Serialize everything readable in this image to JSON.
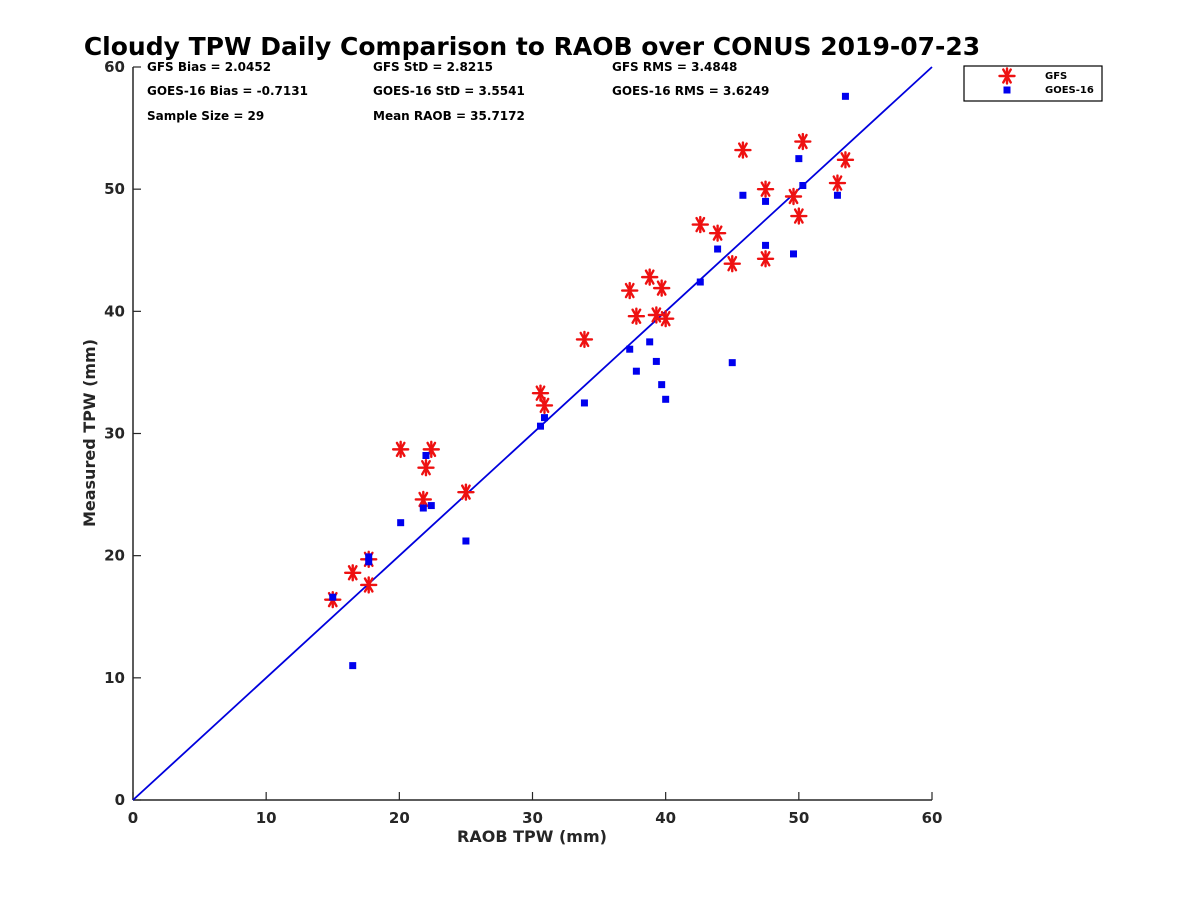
{
  "chart_data": {
    "type": "scatter",
    "title": "Cloudy TPW Daily Comparison to RAOB over CONUS 2019-07-23",
    "xlabel": "RAOB TPW (mm)",
    "ylabel": "Measured TPW (mm)",
    "xlim": [
      0,
      60
    ],
    "ylim": [
      0,
      60
    ],
    "xticks": [
      "0",
      "10",
      "20",
      "30",
      "40",
      "50",
      "60"
    ],
    "yticks": [
      "0",
      "10",
      "20",
      "30",
      "40",
      "50",
      "60"
    ],
    "grid": false,
    "legend": "outside-top-right",
    "stats": [
      "GFS Bias = 2.0452",
      "GFS StD = 2.8215",
      "GFS RMS = 3.4848",
      "GOES-16 Bias = -0.7131",
      "GOES-16 StD = 3.5541",
      "GOES-16 RMS = 3.6249",
      "Sample Size = 29",
      "Mean RAOB = 35.7172"
    ],
    "reference_line": {
      "from": [
        0,
        0
      ],
      "to": [
        60,
        60
      ],
      "color": "#0000dd"
    },
    "series": [
      {
        "name": "GFS",
        "marker": "asterisk",
        "color": "#ee1111",
        "x": [
          15.0,
          16.5,
          17.7,
          17.7,
          20.1,
          21.8,
          22.0,
          22.4,
          25.0,
          30.6,
          30.9,
          33.9,
          37.3,
          37.8,
          38.8,
          39.3,
          39.7,
          40.0,
          42.6,
          43.9,
          45.0,
          45.8,
          47.5,
          47.5,
          49.6,
          50.0,
          50.3,
          52.9,
          53.5
        ],
        "y": [
          16.4,
          18.6,
          17.6,
          19.7,
          28.7,
          24.6,
          27.2,
          28.7,
          25.2,
          33.3,
          32.3,
          37.7,
          41.7,
          39.6,
          42.8,
          39.7,
          41.9,
          39.4,
          47.1,
          46.4,
          43.9,
          53.2,
          50.0,
          44.3,
          49.4,
          47.8,
          53.9,
          50.5,
          52.4
        ]
      },
      {
        "name": "GOES-16",
        "marker": "square",
        "color": "#0000ee",
        "x": [
          15.0,
          16.5,
          17.7,
          17.7,
          20.1,
          21.8,
          22.0,
          22.4,
          25.0,
          30.6,
          30.9,
          33.9,
          37.3,
          37.8,
          38.8,
          39.3,
          39.7,
          40.0,
          42.6,
          43.9,
          45.0,
          45.8,
          47.5,
          47.5,
          49.6,
          50.0,
          50.3,
          52.9,
          53.5
        ],
        "y": [
          16.6,
          11.0,
          19.5,
          19.9,
          22.7,
          23.9,
          28.2,
          24.1,
          21.2,
          30.6,
          31.3,
          32.5,
          36.9,
          35.1,
          37.5,
          35.9,
          34.0,
          32.8,
          42.4,
          45.1,
          35.8,
          49.5,
          49.0,
          45.4,
          44.7,
          52.5,
          50.3,
          49.5,
          57.6
        ]
      }
    ]
  }
}
